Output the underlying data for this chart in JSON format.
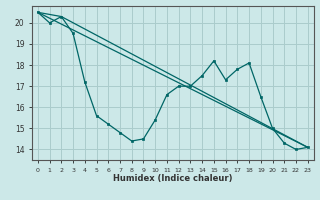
{
  "title": "",
  "xlabel": "Humidex (Indice chaleur)",
  "bg_color": "#cce8e8",
  "grid_color": "#aacccc",
  "line_color": "#006666",
  "xlim": [
    -0.5,
    23.5
  ],
  "ylim": [
    13.5,
    20.8
  ],
  "xticks": [
    0,
    1,
    2,
    3,
    4,
    5,
    6,
    7,
    8,
    9,
    10,
    11,
    12,
    13,
    14,
    15,
    16,
    17,
    18,
    19,
    20,
    21,
    22,
    23
  ],
  "yticks": [
    14,
    15,
    16,
    17,
    18,
    19,
    20
  ],
  "line1": [
    20.5,
    20.0,
    20.3,
    19.5,
    17.2,
    15.6,
    15.2,
    14.8,
    14.4,
    14.5,
    15.4,
    16.6,
    17.0,
    17.0,
    17.5,
    18.2,
    17.3,
    17.8,
    18.1,
    16.5,
    15.0,
    14.3,
    14.0,
    14.1
  ],
  "line2_x": [
    0,
    23
  ],
  "line2_y": [
    20.5,
    14.1
  ],
  "line3_x": [
    0,
    2,
    23
  ],
  "line3_y": [
    20.5,
    20.3,
    14.1
  ]
}
